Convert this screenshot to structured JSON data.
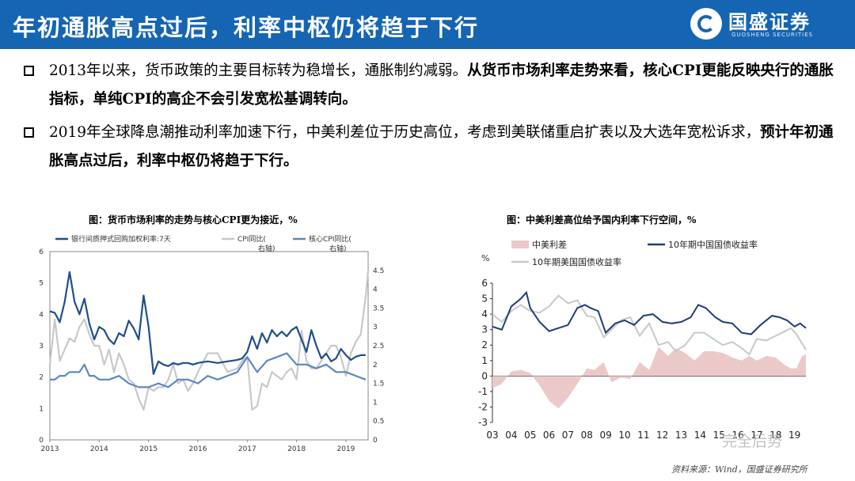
{
  "header": {
    "title": "年初通胀高点过后，利率中枢仍将趋于下行",
    "logo_name": "国盛证券",
    "logo_en": "GUOSHENG SECURITIES"
  },
  "bullets": [
    {
      "normal": "2013年以来，货币政策的主要目标转为稳增长，通胀制约减弱。",
      "bold": "从货币市场利率走势来看，核心CPI更能反映央行的通胀指标，单纯CPI的高企不会引发宽松基调转向。"
    },
    {
      "normal": "2019年全球降息潮推动利率加速下行，中美利差位于历史高位，考虑到美联储重启扩表以及大选年宽松诉求，",
      "bold": "预计年初通胀高点过后，利率中枢仍将趋于下行。"
    }
  ],
  "source": "资料来源：Wind，国盛证券研究所",
  "watermark": "完全后势",
  "chart_data": [
    {
      "type": "line",
      "title": "图：货币市场利率的走势与核心CPI更为接近，%",
      "x_ticks": [
        "2013",
        "2014",
        "2015",
        "2016",
        "2017",
        "2018",
        "2019"
      ],
      "x_range": [
        2013.0,
        2019.45
      ],
      "ylim": [
        0,
        6
      ],
      "y_ticks": [
        "0",
        "1",
        "2",
        "3",
        "4",
        "5",
        "6"
      ],
      "y2lim": [
        0,
        5
      ],
      "y2_ticks": [
        "0",
        "0.5",
        "1",
        "1.5",
        "2",
        "2.5",
        "3",
        "3.5",
        "4",
        "4.5"
      ],
      "legend": [
        "银行间质押式回购加权利率:7天",
        "CPI同比(右轴)",
        "核心CPI同比(右轴)"
      ],
      "colors": {
        "repo": "#1f4e8c",
        "cpi": "#c8c8c8",
        "core": "#5b88c0"
      },
      "series": [
        {
          "name": "银行间质押式回购加权利率:7天",
          "axis": "left",
          "x": [
            2013.0,
            2013.1,
            2013.2,
            2013.3,
            2013.4,
            2013.5,
            2013.6,
            2013.7,
            2013.8,
            2013.9,
            2014.0,
            2014.1,
            2014.2,
            2014.3,
            2014.4,
            2014.5,
            2014.6,
            2014.7,
            2014.8,
            2014.9,
            2015.0,
            2015.1,
            2015.2,
            2015.3,
            2015.4,
            2015.5,
            2015.6,
            2015.7,
            2015.8,
            2015.9,
            2016.0,
            2016.2,
            2016.4,
            2016.6,
            2016.8,
            2016.9,
            2017.0,
            2017.1,
            2017.2,
            2017.3,
            2017.4,
            2017.5,
            2017.6,
            2017.7,
            2017.8,
            2017.9,
            2018.0,
            2018.1,
            2018.2,
            2018.3,
            2018.4,
            2018.5,
            2018.6,
            2018.7,
            2018.8,
            2018.9,
            2019.0,
            2019.1,
            2019.2,
            2019.3,
            2019.4
          ],
          "y": [
            4.1,
            4.05,
            3.75,
            4.4,
            5.35,
            4.4,
            4.0,
            4.5,
            3.7,
            3.2,
            3.6,
            3.5,
            3.2,
            3.05,
            3.4,
            3.3,
            3.8,
            3.55,
            3.2,
            4.6,
            3.6,
            2.1,
            2.5,
            2.4,
            2.35,
            2.45,
            2.4,
            2.45,
            2.45,
            2.4,
            2.45,
            2.5,
            2.45,
            2.5,
            2.55,
            2.6,
            2.8,
            3.3,
            2.9,
            3.4,
            3.1,
            3.5,
            3.3,
            3.45,
            3.3,
            3.5,
            3.6,
            3.2,
            2.8,
            3.5,
            3.0,
            2.6,
            2.75,
            2.5,
            2.6,
            2.9,
            2.7,
            2.55,
            2.65,
            2.7,
            2.7
          ]
        },
        {
          "name": "CPI同比(右轴)",
          "axis": "right",
          "x": [
            2013.0,
            2013.1,
            2013.2,
            2013.3,
            2013.4,
            2013.5,
            2013.6,
            2013.7,
            2013.8,
            2013.9,
            2014.0,
            2014.1,
            2014.2,
            2014.3,
            2014.4,
            2014.5,
            2014.6,
            2014.7,
            2014.8,
            2014.9,
            2015.0,
            2015.1,
            2015.2,
            2015.3,
            2015.4,
            2015.5,
            2015.6,
            2015.7,
            2015.8,
            2015.9,
            2016.0,
            2016.2,
            2016.4,
            2016.6,
            2016.8,
            2016.9,
            2017.0,
            2017.1,
            2017.2,
            2017.3,
            2017.4,
            2017.5,
            2017.6,
            2017.7,
            2017.8,
            2017.9,
            2018.0,
            2018.1,
            2018.2,
            2018.3,
            2018.4,
            2018.5,
            2018.6,
            2018.7,
            2018.8,
            2018.9,
            2019.0,
            2019.1,
            2019.2,
            2019.3,
            2019.4,
            2019.45
          ],
          "y": [
            2.0,
            3.2,
            2.1,
            2.4,
            2.7,
            2.6,
            3.0,
            3.2,
            2.8,
            2.5,
            2.5,
            2.0,
            2.4,
            1.8,
            2.3,
            2.0,
            1.6,
            1.5,
            1.1,
            0.8,
            1.4,
            1.3,
            1.4,
            1.4,
            1.6,
            2.0,
            1.5,
            1.6,
            1.3,
            1.5,
            1.8,
            2.3,
            2.3,
            1.8,
            1.9,
            2.1,
            2.2,
            0.8,
            0.9,
            1.5,
            1.4,
            1.8,
            1.7,
            1.6,
            1.8,
            1.9,
            1.6,
            2.9,
            2.1,
            1.9,
            1.9,
            2.1,
            2.3,
            2.5,
            2.5,
            2.2,
            1.7,
            2.3,
            2.6,
            2.8,
            3.8,
            4.5
          ]
        },
        {
          "name": "核心CPI同比(右轴)",
          "axis": "right",
          "x": [
            2013.0,
            2013.1,
            2013.2,
            2013.3,
            2013.4,
            2013.5,
            2013.6,
            2013.7,
            2013.8,
            2013.9,
            2014.0,
            2014.2,
            2014.4,
            2014.6,
            2014.8,
            2015.0,
            2015.2,
            2015.4,
            2015.6,
            2015.8,
            2016.0,
            2016.2,
            2016.4,
            2016.6,
            2016.8,
            2017.0,
            2017.2,
            2017.4,
            2017.6,
            2017.8,
            2018.0,
            2018.2,
            2018.4,
            2018.6,
            2018.8,
            2019.0,
            2019.2,
            2019.4
          ],
          "y": [
            1.6,
            1.6,
            1.7,
            1.7,
            1.8,
            1.8,
            1.8,
            2.0,
            1.7,
            1.7,
            1.6,
            1.6,
            1.7,
            1.5,
            1.4,
            1.4,
            1.5,
            1.4,
            1.6,
            1.6,
            1.5,
            1.7,
            1.6,
            1.7,
            1.8,
            2.2,
            1.8,
            2.1,
            2.2,
            2.3,
            2.0,
            2.0,
            1.9,
            2.0,
            1.8,
            1.8,
            1.7,
            1.6
          ]
        }
      ]
    },
    {
      "type": "area",
      "title": "图：中美利差高位给予国内利率下行空间，%",
      "unit": "%",
      "x_ticks": [
        "03",
        "04",
        "05",
        "06",
        "07",
        "08",
        "09",
        "10",
        "11",
        "12",
        "13",
        "14",
        "15",
        "16",
        "17",
        "18",
        "19"
      ],
      "x_range": [
        2003.0,
        2019.6
      ],
      "ylim": [
        -3,
        6
      ],
      "y_ticks": [
        "-3",
        "-2",
        "-1",
        "0",
        "1",
        "2",
        "3",
        "4",
        "5",
        "6"
      ],
      "legend": [
        "中美利差",
        "10年期中国国债收益率",
        "10年期美国国债收益率"
      ],
      "colors": {
        "spread": "#ecc9c9",
        "cn10y": "#1f3d7a",
        "us10y": "#c8c8c8"
      },
      "series": [
        {
          "name": "10年期中国国债收益率",
          "x": [
            2003.0,
            2003.5,
            2004.0,
            2004.5,
            2004.8,
            2005.0,
            2005.5,
            2006.0,
            2006.5,
            2007.0,
            2007.5,
            2007.9,
            2008.2,
            2008.6,
            2009.0,
            2009.5,
            2010.0,
            2010.5,
            2011.0,
            2011.5,
            2012.0,
            2012.5,
            2013.0,
            2013.5,
            2013.9,
            2014.3,
            2014.8,
            2015.2,
            2015.7,
            2016.2,
            2016.7,
            2017.2,
            2017.8,
            2018.2,
            2018.6,
            2019.0,
            2019.3,
            2019.6
          ],
          "y": [
            3.2,
            3.0,
            4.5,
            5.0,
            5.4,
            4.4,
            3.5,
            2.9,
            3.1,
            3.3,
            4.4,
            4.6,
            4.4,
            4.2,
            2.8,
            3.4,
            3.6,
            3.3,
            3.9,
            4.0,
            3.5,
            3.4,
            3.5,
            3.8,
            4.6,
            4.4,
            3.8,
            3.5,
            3.4,
            2.8,
            2.7,
            3.3,
            3.9,
            3.8,
            3.6,
            3.2,
            3.4,
            3.1
          ]
        },
        {
          "name": "10年期美国国债收益率",
          "x": [
            2003.0,
            2003.5,
            2004.0,
            2004.5,
            2005.0,
            2005.5,
            2006.0,
            2006.5,
            2007.0,
            2007.5,
            2008.0,
            2008.4,
            2008.9,
            2009.3,
            2009.8,
            2010.3,
            2010.8,
            2011.3,
            2011.8,
            2012.3,
            2012.7,
            2013.2,
            2013.7,
            2014.2,
            2014.7,
            2015.2,
            2015.7,
            2016.2,
            2016.6,
            2017.0,
            2017.5,
            2018.0,
            2018.5,
            2018.8,
            2019.1,
            2019.4,
            2019.6
          ],
          "y": [
            4.0,
            3.5,
            4.2,
            4.6,
            4.2,
            4.1,
            4.5,
            5.2,
            4.7,
            4.9,
            3.9,
            3.8,
            2.5,
            3.0,
            3.6,
            3.8,
            2.6,
            3.4,
            2.0,
            2.2,
            1.6,
            2.0,
            2.8,
            2.8,
            2.4,
            2.0,
            2.2,
            1.8,
            1.4,
            2.4,
            2.3,
            2.6,
            2.9,
            3.1,
            2.7,
            2.1,
            1.7
          ]
        },
        {
          "name": "中美利差",
          "x": [
            2003.0,
            2003.5,
            2004.0,
            2004.5,
            2005.0,
            2005.5,
            2006.0,
            2006.5,
            2007.0,
            2007.5,
            2008.0,
            2008.4,
            2008.9,
            2009.3,
            2009.8,
            2010.3,
            2010.8,
            2011.3,
            2011.8,
            2012.3,
            2012.7,
            2013.2,
            2013.7,
            2014.2,
            2014.7,
            2015.2,
            2015.7,
            2016.2,
            2016.6,
            2017.0,
            2017.5,
            2018.0,
            2018.5,
            2018.8,
            2019.1,
            2019.4,
            2019.6
          ],
          "y": [
            -0.8,
            -0.5,
            0.3,
            0.4,
            0.2,
            -0.6,
            -1.6,
            -2.1,
            -1.4,
            -0.5,
            0.5,
            0.4,
            0.9,
            -0.4,
            -0.1,
            -0.2,
            0.9,
            0.4,
            1.9,
            1.3,
            1.8,
            1.5,
            1.0,
            1.6,
            1.6,
            1.5,
            1.2,
            1.0,
            1.3,
            1.0,
            1.3,
            1.2,
            0.7,
            0.5,
            0.5,
            1.3,
            1.4
          ]
        }
      ]
    }
  ]
}
